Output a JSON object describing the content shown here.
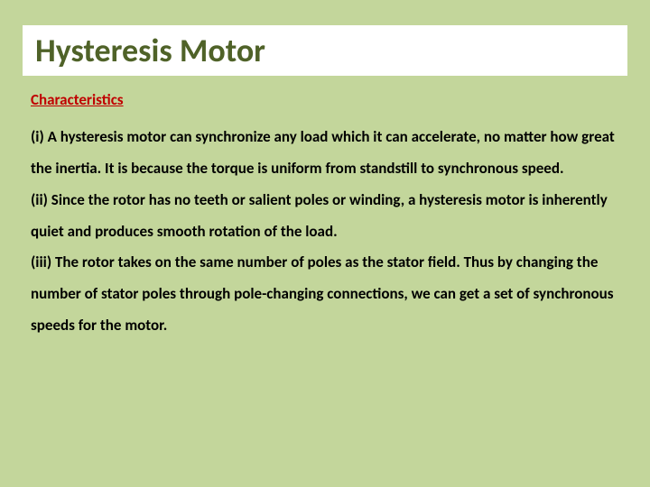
{
  "background_color": "#c3d69b",
  "title_box": {
    "bg_color": "#ffffff",
    "text": "Hysteresis Motor",
    "text_color": "#4f6228",
    "font_size": 36,
    "font_weight": 700
  },
  "subheading": {
    "text": "Characteristics",
    "color": "#c00000",
    "font_size": 17,
    "font_weight": 700,
    "underline": true
  },
  "body": {
    "color": "#000000",
    "font_size": 17,
    "font_weight": 700,
    "line_height": 2.05,
    "paragraphs": [
      "(i)  A hysteresis motor can synchronize any load which it can accelerate, no matter how great the inertia. It is because the torque is uniform from standstill to synchronous speed.",
      "(ii)  Since the rotor has no teeth or salient poles or winding, a hysteresis motor is inherently quiet and produces smooth rotation of the load.",
      "(iii)  The rotor takes on the same number of poles as the stator field. Thus by changing the number of stator poles through pole-changing connections, we can get a set of synchronous speeds for the motor."
    ]
  }
}
